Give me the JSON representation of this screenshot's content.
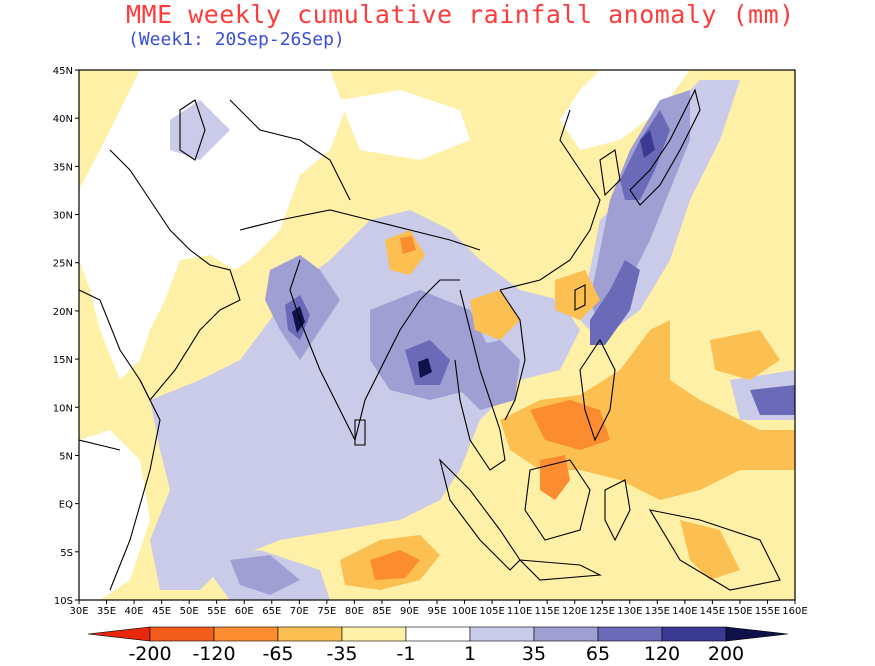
{
  "title": "MME weekly cumulative rainfall anomaly (mm)",
  "subtitle": "(Week1: 20Sep-26Sep)",
  "map": {
    "lon_range": [
      30,
      160
    ],
    "lat_range": [
      -10,
      45
    ],
    "lat_labels": [
      "45N",
      "40N",
      "35N",
      "30N",
      "25N",
      "20N",
      "15N",
      "10N",
      "5N",
      "EQ",
      "5S",
      "10S"
    ],
    "lon_labels": [
      "30E",
      "35E",
      "40E",
      "45E",
      "50E",
      "55E",
      "60E",
      "65E",
      "70E",
      "75E",
      "80E",
      "85E",
      "90E",
      "95E",
      "100E",
      "105E",
      "110E",
      "115E",
      "120E",
      "125E",
      "130E",
      "135E",
      "140E",
      "145E",
      "150E",
      "155E",
      "160E"
    ]
  },
  "colorbar": {
    "labels": [
      "-200",
      "-120",
      "-65",
      "-35",
      "-1",
      "1",
      "35",
      "65",
      "120",
      "200"
    ],
    "colors": [
      "#e8280c",
      "#f25c1c",
      "#fb8c2f",
      "#fbbf52",
      "#fff0a8",
      "#ffffff",
      "#c9cbe8",
      "#9f9fd4",
      "#6a6ab8",
      "#3a3a92",
      "#10104a"
    ]
  },
  "palette": {
    "strong_wet": "#3a3a92",
    "moderate_wet": "#6a6ab8",
    "light_wet": "#9f9fd4",
    "very_light_wet": "#c9cbe8",
    "near_zero": "#ffffff",
    "light_dry": "#fff0a8",
    "moderate_dry": "#fbbf52",
    "dry": "#fb8c2f",
    "very_dry": "#f25c1c"
  }
}
